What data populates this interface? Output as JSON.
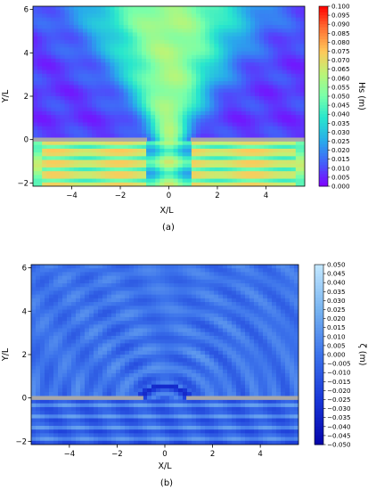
{
  "chart_data": [
    {
      "type": "heatmap",
      "panel_label": "(a)",
      "xlabel": "X/L",
      "ylabel": "Y/L",
      "xlim": [
        -5.6,
        5.6
      ],
      "ylim": [
        -2.15,
        6.15
      ],
      "xticks": [
        -4,
        -2,
        0,
        2,
        4
      ],
      "xtick_labels": [
        "−4",
        "−2",
        "0",
        "2",
        "4"
      ],
      "yticks": [
        -2,
        0,
        2,
        4,
        6
      ],
      "ytick_labels": [
        "−2",
        "0",
        "2",
        "4",
        "6"
      ],
      "colormap": "rainbow",
      "colorbar": {
        "label": "Hs (m)",
        "min": 0.0,
        "max": 0.1,
        "ticks": [
          0.0,
          0.005,
          0.01,
          0.015,
          0.02,
          0.025,
          0.03,
          0.035,
          0.04,
          0.045,
          0.05,
          0.055,
          0.06,
          0.065,
          0.07,
          0.075,
          0.08,
          0.085,
          0.09,
          0.095,
          0.1
        ],
        "tick_labels": [
          "0.000",
          "0.005",
          "0.010",
          "0.015",
          "0.020",
          "0.025",
          "0.030",
          "0.035",
          "0.040",
          "0.045",
          "0.050",
          "0.055",
          "0.060",
          "0.065",
          "0.070",
          "0.075",
          "0.080",
          "0.085",
          "0.090",
          "0.095",
          "0.100"
        ]
      },
      "breakwaters": [
        {
          "x": [
            -5.6,
            -0.9
          ],
          "y": 0
        },
        {
          "x": [
            0.9,
            5.6
          ],
          "y": 0
        }
      ],
      "breakwater_color": "#a8a8a8"
    },
    {
      "type": "heatmap",
      "panel_label": "(b)",
      "xlabel": "X/L",
      "ylabel": "Y/L",
      "xlim": [
        -5.6,
        5.6
      ],
      "ylim": [
        -2.15,
        6.15
      ],
      "xticks": [
        -4,
        -2,
        0,
        2,
        4
      ],
      "xtick_labels": [
        "−4",
        "−2",
        "0",
        "2",
        "4"
      ],
      "yticks": [
        -2,
        0,
        2,
        4,
        6
      ],
      "ytick_labels": [
        "−2",
        "0",
        "2",
        "4",
        "6"
      ],
      "colormap": "Blues",
      "colorbar": {
        "label": "ζ (m)",
        "min": -0.05,
        "max": 0.05,
        "ticks": [
          -0.05,
          -0.045,
          -0.04,
          -0.035,
          -0.03,
          -0.025,
          -0.02,
          -0.015,
          -0.01,
          -0.005,
          0.0,
          0.005,
          0.01,
          0.015,
          0.02,
          0.025,
          0.03,
          0.035,
          0.04,
          0.045,
          0.05
        ],
        "tick_labels": [
          "−0.050",
          "−0.045",
          "−0.040",
          "−0.035",
          "−0.030",
          "−0.025",
          "−0.020",
          "−0.015",
          "−0.010",
          "−0.005",
          "0.000",
          "0.005",
          "0.010",
          "0.015",
          "0.020",
          "0.025",
          "0.030",
          "0.035",
          "0.040",
          "0.045",
          "0.050"
        ]
      },
      "breakwaters": [
        {
          "x": [
            -5.6,
            -0.9
          ],
          "y": 0
        },
        {
          "x": [
            0.9,
            5.6
          ],
          "y": 0
        }
      ],
      "breakwater_color": "#a8a8a8"
    }
  ]
}
